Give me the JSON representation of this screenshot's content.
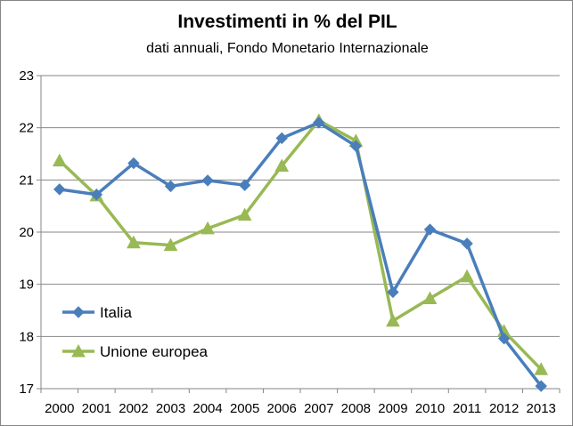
{
  "chart_data": {
    "type": "line",
    "title": "Investimenti in % del PIL",
    "subtitle": "dati annuali, Fondo Monetario Internazionale",
    "xlabel": "",
    "ylabel": "",
    "categories": [
      "2000",
      "2001",
      "2002",
      "2003",
      "2004",
      "2005",
      "2006",
      "2007",
      "2008",
      "2009",
      "2010",
      "2011",
      "2012",
      "2013"
    ],
    "ylim": [
      17,
      23
    ],
    "yticks": [
      17,
      18,
      19,
      20,
      21,
      22,
      23
    ],
    "grid": true,
    "legend_position": "bottom-left",
    "series": [
      {
        "name": "Italia",
        "color": "#4a7ebb",
        "marker": "diamond",
        "values": [
          20.82,
          20.72,
          21.32,
          20.88,
          20.99,
          20.9,
          21.8,
          22.1,
          21.65,
          18.85,
          20.05,
          19.78,
          17.96,
          17.05
        ]
      },
      {
        "name": "Unione europea",
        "color": "#98b954",
        "marker": "triangle",
        "values": [
          21.37,
          20.7,
          19.8,
          19.75,
          20.07,
          20.33,
          21.27,
          22.14,
          21.75,
          18.3,
          18.73,
          19.15,
          18.1,
          17.37
        ]
      }
    ]
  }
}
